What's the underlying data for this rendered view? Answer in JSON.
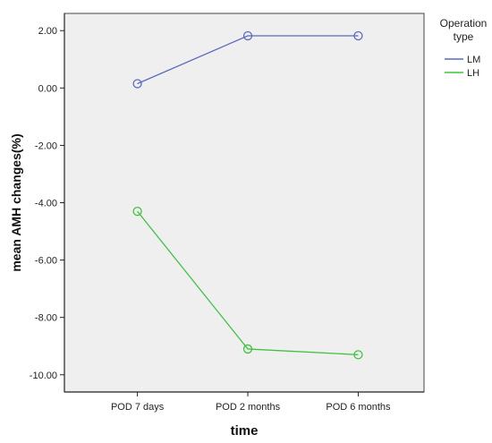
{
  "chart_data": {
    "type": "line",
    "xlabel": "time",
    "ylabel": "mean AMH changes(%)",
    "categories": [
      "POD 7 days",
      "POD 2 months",
      "POD 6 months"
    ],
    "ylim": [
      -10.6,
      2.6
    ],
    "yticks": [
      2,
      0,
      -2,
      -4,
      -6,
      -8,
      -10
    ],
    "ytick_labels": [
      "2.00",
      "0.00",
      "-2.00",
      "-4.00",
      "-6.00",
      "-8.00",
      "-10.00"
    ],
    "legend_title": "Operation type",
    "legend_title_lines": [
      "Operation",
      "type"
    ],
    "legend_position": "right",
    "grid": false,
    "background": "#efefef",
    "series": [
      {
        "name": "LM",
        "color": "#5b6abf",
        "values": [
          0.15,
          1.82,
          1.82
        ]
      },
      {
        "name": "LH",
        "color": "#3fc33f",
        "values": [
          -4.3,
          -9.1,
          -9.3
        ]
      }
    ]
  }
}
